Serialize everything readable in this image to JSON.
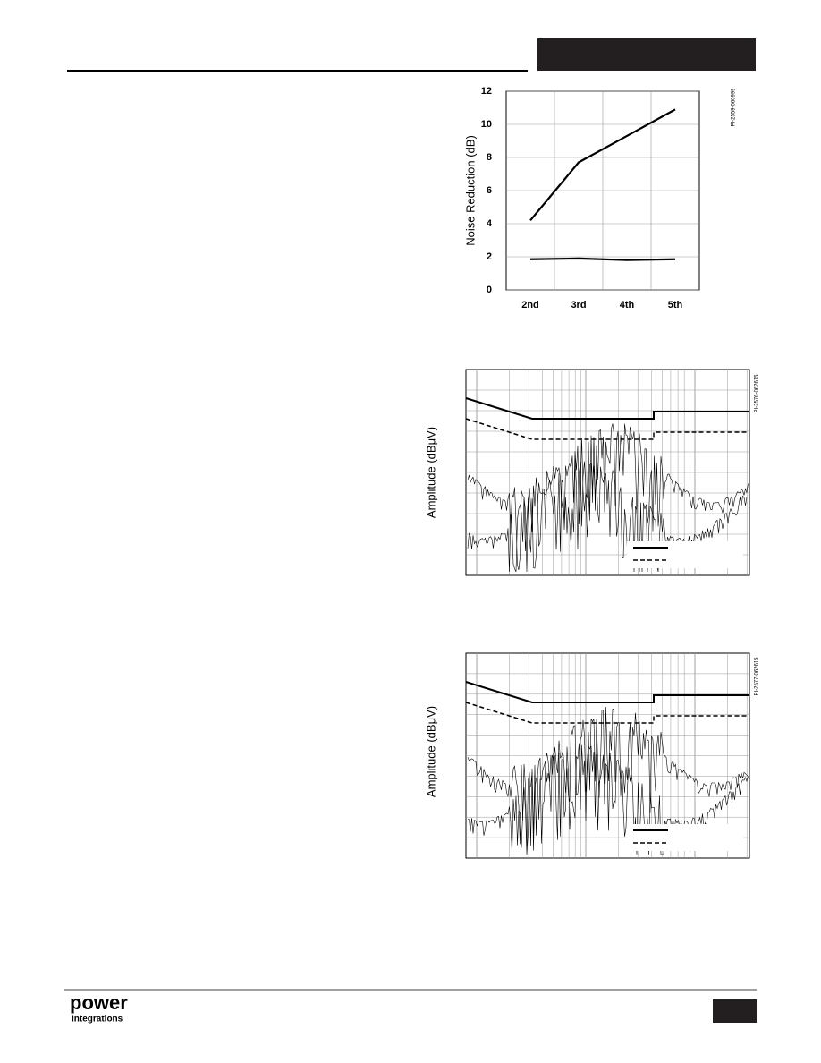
{
  "chart_data": {
    "type": "line",
    "y_label": "Noise Reduction (dB)",
    "code": "PI-2559-060999",
    "categories": [
      "2nd",
      "3rd",
      "4th",
      "5th"
    ],
    "series": [
      {
        "color": "#000000",
        "values": [
          4.2,
          7.7,
          9.3,
          10.9
        ]
      },
      {
        "color": "#000000",
        "values": [
          1.85,
          1.9,
          1.8,
          1.85
        ]
      }
    ],
    "ylim": [
      0,
      12
    ],
    "yticks": [
      0,
      2,
      4,
      6,
      8,
      10,
      12
    ],
    "grid": true
  },
  "figures": [
    {
      "y_label": "Amplitude (dBμV)",
      "code": "PI-2576-062615"
    },
    {
      "y_label": "Amplitude (dBμV)",
      "code": "PI-2577-062615"
    }
  ],
  "footer": {
    "logo": "power",
    "logo_sub": "Integrations"
  }
}
